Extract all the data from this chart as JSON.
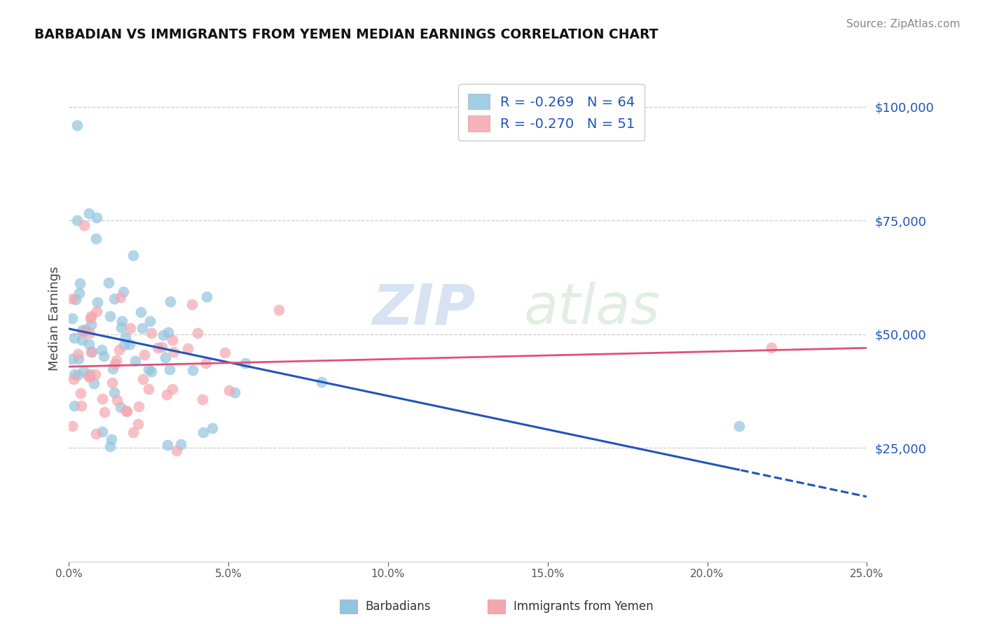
{
  "title": "BARBADIAN VS IMMIGRANTS FROM YEMEN MEDIAN EARNINGS CORRELATION CHART",
  "source": "Source: ZipAtlas.com",
  "ylabel": "Median Earnings",
  "r1": -0.269,
  "n1": 64,
  "r2": -0.27,
  "n2": 51,
  "color1": "#92c5de",
  "color2": "#f4a6b0",
  "line1_color": "#2255bb",
  "line2_color": "#e0507a",
  "watermark_zip": "ZIP",
  "watermark_atlas": "atlas",
  "yticks": [
    0,
    25000,
    50000,
    75000,
    100000
  ],
  "xmin": 0.0,
  "xmax": 0.25,
  "ymin": 0,
  "ymax": 107000,
  "legend_label1": "Barbadians",
  "legend_label2": "Immigrants from Yemen",
  "right_label_color": "#2255bb",
  "grid_color": "#cccccc",
  "axis_color": "#cccccc"
}
